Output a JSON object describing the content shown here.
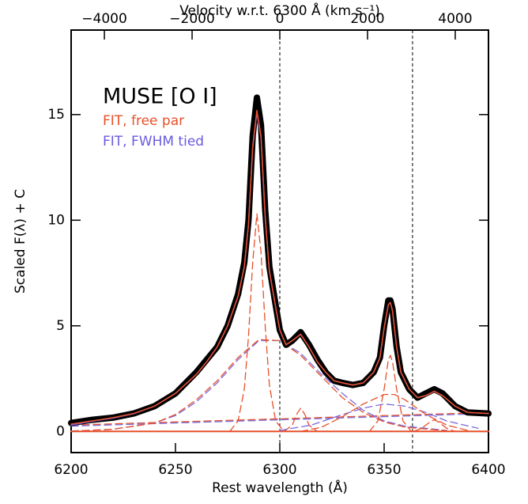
{
  "chart_data": {
    "type": "line",
    "annotation": "MUSE [O I]",
    "xlabel": "Rest wavelength (Å)",
    "ylabel": "Scaled F(λ) + C",
    "x2label": "Velocity w.r.t. 6300 Å (km s⁻¹)",
    "xlim": [
      6200,
      6400
    ],
    "xticks": [
      6200,
      6250,
      6300,
      6350,
      6400
    ],
    "ylim": [
      -1,
      19
    ],
    "yticks": [
      0,
      5,
      10,
      15
    ],
    "x2lim": [
      -4758,
      4758
    ],
    "x2ticks": [
      {
        "value": -4000,
        "label": "−4000"
      },
      {
        "value": -2000,
        "label": "−2000"
      },
      0,
      2000,
      4000
    ],
    "vlines": [
      6300,
      6363.6
    ],
    "x": [
      6200,
      6210,
      6220,
      6230,
      6240,
      6250,
      6260,
      6265,
      6270,
      6275,
      6280,
      6283,
      6285,
      6287,
      6289,
      6291,
      6293,
      6295,
      6298,
      6300,
      6303,
      6306,
      6310,
      6314,
      6318,
      6322,
      6326,
      6330,
      6335,
      6340,
      6345,
      6348,
      6350,
      6352,
      6353,
      6354,
      6356,
      6358,
      6362,
      6366,
      6370,
      6374,
      6378,
      6384,
      6390,
      6400
    ],
    "series": [
      {
        "color": "#e8502a",
        "style": "solid",
        "line_width": 2,
        "x": [
          6200,
          6400
        ],
        "values": [
          0,
          0
        ]
      },
      {
        "color": "#e8502a",
        "style": "dashed",
        "line_width": 1.3,
        "x": [
          6200,
          6400
        ],
        "values": [
          0.3,
          0.9
        ]
      },
      {
        "color": "#7a6ae0",
        "style": "dashed",
        "line_width": 1.3,
        "x": [
          6200,
          6400
        ],
        "values": [
          0.25,
          0.85
        ]
      },
      {
        "color": "#7a6ae0",
        "style": "dashed",
        "line_width": 1.3,
        "x": [
          6200,
          6220,
          6240,
          6250,
          6260,
          6270,
          6280,
          6290,
          6300,
          6310,
          6320,
          6330,
          6340,
          6350,
          6360,
          6380
        ],
        "values": [
          0.02,
          0.1,
          0.4,
          0.75,
          1.4,
          2.3,
          3.4,
          4.3,
          4.3,
          3.7,
          2.7,
          1.8,
          1.0,
          0.5,
          0.25,
          0.05
        ]
      },
      {
        "color": "#e8502a",
        "style": "dashed",
        "line_width": 1.3,
        "x": [
          6200,
          6220,
          6240,
          6250,
          6260,
          6270,
          6280,
          6290,
          6300,
          6310,
          6320,
          6330,
          6340,
          6350,
          6360,
          6380
        ],
        "values": [
          0.02,
          0.1,
          0.4,
          0.8,
          1.5,
          2.4,
          3.5,
          4.35,
          4.3,
          3.6,
          2.6,
          1.6,
          0.9,
          0.45,
          0.2,
          0.03
        ]
      },
      {
        "color": "#e8502a",
        "style": "dashed",
        "line_width": 1.3,
        "x": [
          6276,
          6280,
          6283,
          6285,
          6287,
          6289,
          6291,
          6293,
          6295,
          6298,
          6302
        ],
        "values": [
          0,
          0.5,
          2,
          4.5,
          8,
          10.3,
          8.5,
          5,
          2.2,
          0.5,
          0
        ]
      },
      {
        "color": "#e8502a",
        "style": "dashed",
        "line_width": 1.3,
        "x": [
          6302,
          6306,
          6308,
          6310,
          6312,
          6314,
          6318
        ],
        "values": [
          0,
          0.3,
          0.8,
          1.1,
          0.8,
          0.3,
          0
        ]
      },
      {
        "color": "#7a6ae0",
        "style": "dashed",
        "line_width": 1.3,
        "x": [
          6300,
          6315,
          6330,
          6340,
          6350,
          6360,
          6370,
          6380,
          6395
        ],
        "values": [
          0.05,
          0.3,
          0.8,
          1.1,
          1.3,
          1.2,
          0.9,
          0.5,
          0.15
        ]
      },
      {
        "color": "#e8502a",
        "style": "dashed",
        "line_width": 1.3,
        "x": [
          6310,
          6320,
          6330,
          6340,
          6350,
          6355,
          6360,
          6370,
          6380,
          6390
        ],
        "values": [
          0,
          0.2,
          0.7,
          1.3,
          1.75,
          1.75,
          1.5,
          0.8,
          0.3,
          0.05
        ]
      },
      {
        "color": "#e8502a",
        "style": "dashed",
        "line_width": 1.3,
        "x": [
          6343,
          6347,
          6350,
          6352,
          6353,
          6354,
          6356,
          6359,
          6363
        ],
        "values": [
          0,
          0.5,
          2.0,
          3.4,
          3.6,
          3.3,
          2.0,
          0.5,
          0
        ]
      },
      {
        "color": "#e8502a",
        "style": "dashed",
        "line_width": 1.3,
        "x": [
          6364,
          6368,
          6372,
          6374,
          6376,
          6380,
          6384
        ],
        "values": [
          0,
          0.15,
          0.45,
          0.55,
          0.45,
          0.15,
          0
        ]
      },
      {
        "color": "#000000",
        "style": "solid",
        "line_width": 8,
        "values": [
          0.4,
          0.55,
          0.65,
          0.85,
          1.2,
          1.8,
          2.8,
          3.4,
          4.0,
          5.0,
          6.5,
          8.0,
          10.0,
          14.0,
          15.8,
          14.5,
          10.5,
          7.8,
          6.0,
          4.8,
          4.1,
          4.3,
          4.7,
          4.1,
          3.4,
          2.8,
          2.4,
          2.3,
          2.2,
          2.3,
          2.8,
          3.5,
          5.0,
          6.2,
          6.2,
          5.8,
          4.0,
          2.8,
          2.0,
          1.6,
          1.8,
          2.0,
          1.8,
          1.2,
          0.9,
          0.85
        ]
      },
      {
        "name": "FIT, FWHM tied",
        "color": "#6a5ae0",
        "style": "solid",
        "line_width": 1.5,
        "values": [
          0.3,
          0.48,
          0.63,
          0.84,
          1.2,
          1.8,
          2.7,
          3.3,
          4.0,
          5.0,
          6.4,
          7.8,
          9.8,
          13.4,
          15.1,
          13.9,
          10.1,
          7.6,
          5.9,
          4.8,
          4.1,
          4.3,
          4.6,
          4.0,
          3.3,
          2.8,
          2.4,
          2.3,
          2.2,
          2.3,
          2.8,
          3.5,
          4.9,
          6.0,
          6.1,
          5.7,
          4.0,
          2.8,
          2.0,
          1.6,
          1.7,
          1.9,
          1.7,
          1.2,
          0.9,
          0.85
        ]
      },
      {
        "name": "FIT, free par",
        "color": "#e8502a",
        "style": "solid",
        "line_width": 1.5,
        "values": [
          0.35,
          0.5,
          0.65,
          0.85,
          1.2,
          1.8,
          2.7,
          3.3,
          4.0,
          5.0,
          6.4,
          7.8,
          9.8,
          13.5,
          15.2,
          14.0,
          10.2,
          7.6,
          5.9,
          4.8,
          4.1,
          4.3,
          4.6,
          4.0,
          3.3,
          2.8,
          2.4,
          2.3,
          2.2,
          2.3,
          2.8,
          3.5,
          4.9,
          6.0,
          6.1,
          5.7,
          4.0,
          2.8,
          2.0,
          1.6,
          1.7,
          1.9,
          1.7,
          1.2,
          0.9,
          0.85
        ]
      }
    ]
  }
}
